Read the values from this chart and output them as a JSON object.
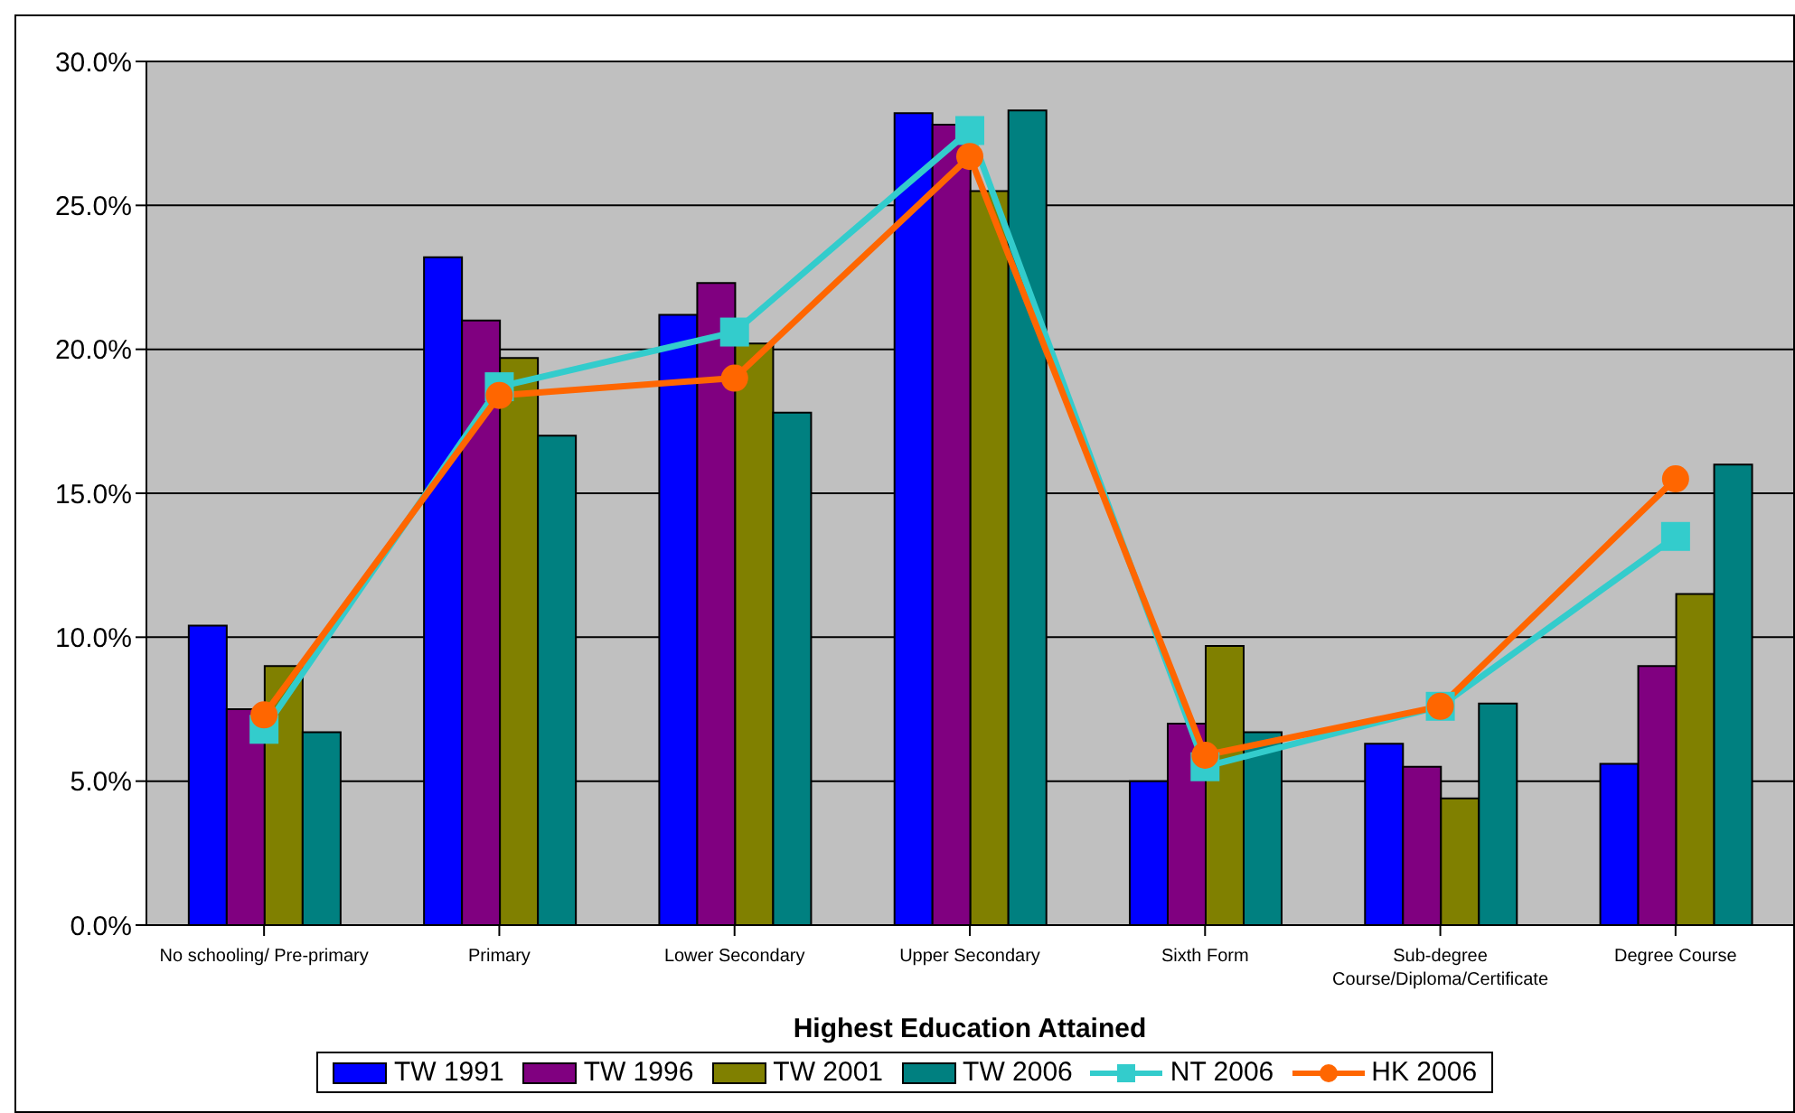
{
  "chart_data": {
    "type": "bar",
    "xlabel": "Highest Education Attained",
    "categories": [
      "No schooling/ Pre-primary",
      "Primary",
      "Lower Secondary",
      "Upper Secondary",
      "Sixth Form",
      "Sub-degree Course/Diploma/Certificate",
      "Degree Course"
    ],
    "series": [
      {
        "name": "TW 1991",
        "color": "#0000ff",
        "values": [
          10.4,
          23.2,
          21.2,
          28.2,
          5.0,
          6.3,
          5.6
        ]
      },
      {
        "name": "TW 1996",
        "color": "#800080",
        "values": [
          7.5,
          21.0,
          22.3,
          27.8,
          7.0,
          5.5,
          9.0
        ]
      },
      {
        "name": "TW 2001",
        "color": "#808000",
        "values": [
          9.0,
          19.7,
          20.2,
          25.5,
          9.7,
          4.4,
          11.5
        ]
      },
      {
        "name": "TW 2006",
        "color": "#008080",
        "values": [
          6.7,
          17.0,
          17.8,
          28.3,
          6.7,
          7.7,
          16.0
        ]
      },
      {
        "name": "NT 2006",
        "type": "line",
        "color": "#33cccc",
        "marker": "square",
        "values": [
          6.8,
          18.7,
          20.6,
          27.6,
          5.5,
          7.6,
          13.5
        ]
      },
      {
        "name": "HK 2006",
        "type": "line",
        "color": "#ff6600",
        "marker": "circle",
        "values": [
          7.3,
          18.4,
          19.0,
          26.7,
          5.9,
          7.6,
          15.5
        ]
      }
    ],
    "ylim": [
      0,
      30
    ],
    "yticks": [
      {
        "value": 0,
        "label": "0.0%"
      },
      {
        "value": 5,
        "label": "5.0%"
      },
      {
        "value": 10,
        "label": "10.0%"
      },
      {
        "value": 15,
        "label": "15.0%"
      },
      {
        "value": 20,
        "label": "20.0%"
      },
      {
        "value": 25,
        "label": "25.0%"
      },
      {
        "value": 30,
        "label": "30.0%"
      }
    ],
    "grid": "y",
    "legend": "bottom"
  }
}
